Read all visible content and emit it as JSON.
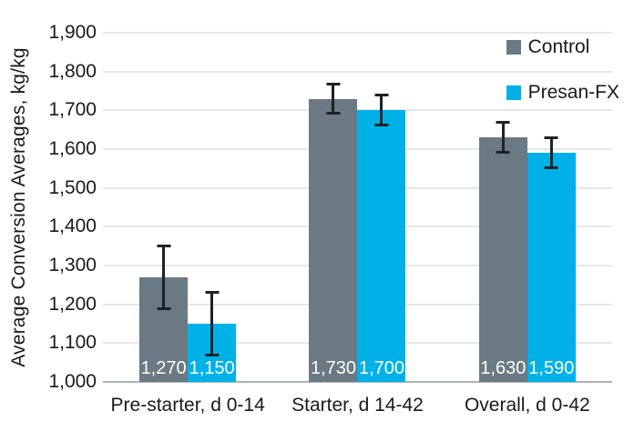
{
  "chart_data": {
    "type": "bar",
    "title": "",
    "xlabel": "",
    "ylabel": "Average Conversion Averages, kg/kg",
    "ylim": [
      1000,
      1900
    ],
    "ytick_step": 100,
    "ytick_labels": [
      "1,000",
      "1,100",
      "1,200",
      "1,300",
      "1,400",
      "1,500",
      "1,600",
      "1,700",
      "1,800",
      "1,900"
    ],
    "grid": true,
    "legend_position": "top-right",
    "categories": [
      "Pre-starter, d 0-14",
      "Starter, d 14-42",
      "Overall, d 0-42"
    ],
    "series": [
      {
        "name": "Control",
        "color": "#6a7983",
        "values": [
          1270,
          1730,
          1630
        ],
        "value_labels": [
          "1,270",
          "1,730",
          "1,630"
        ],
        "errors": [
          85,
          42,
          42
        ]
      },
      {
        "name": "Presan-FX",
        "color": "#00b1e8",
        "values": [
          1150,
          1700,
          1590
        ],
        "value_labels": [
          "1,150",
          "1,700",
          "1,590"
        ],
        "errors": [
          85,
          42,
          42
        ]
      }
    ],
    "colors": {
      "gridline": "#e4e7e9",
      "axis_line": "#abb4ba",
      "error_bar": "#1e2226",
      "value_label_text": "#ffffff",
      "text": "#1a1a1a",
      "background": "#ffffff"
    }
  }
}
